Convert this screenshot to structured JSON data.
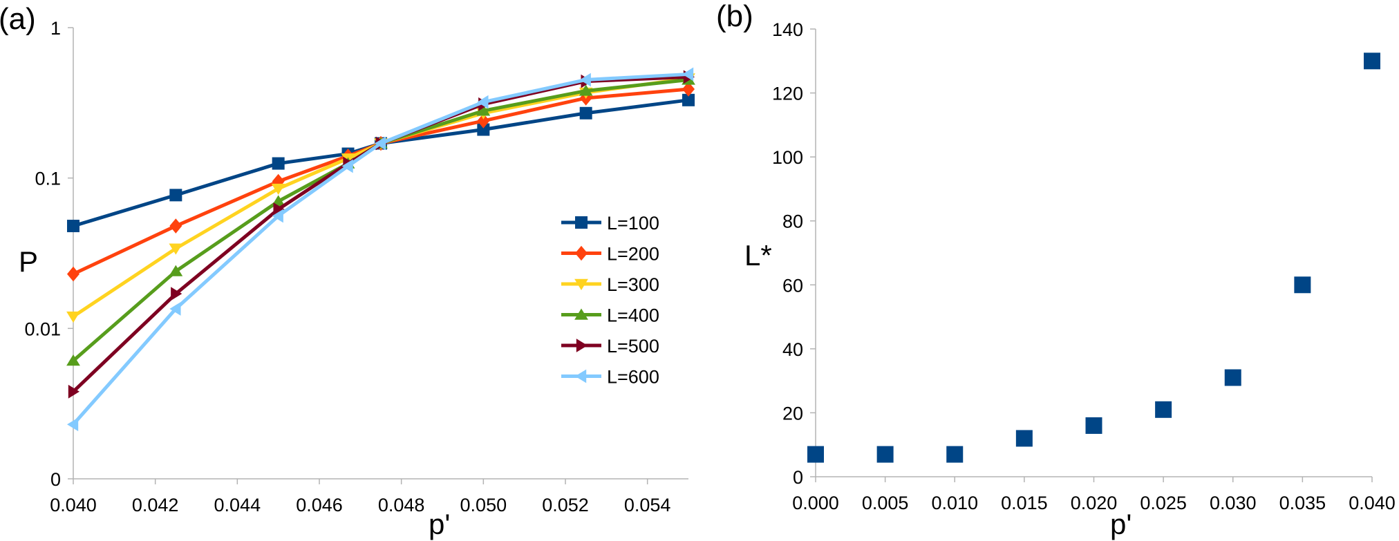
{
  "chart_data": [
    {
      "panel_label": "(a)",
      "type": "line",
      "xlabel": "p'",
      "ylabel": "P",
      "y_scale": "log",
      "xlim": [
        0.04,
        0.055
      ],
      "ylim": [
        0.001,
        1
      ],
      "x_ticks": [
        0.04,
        0.042,
        0.044,
        0.046,
        0.048,
        0.05,
        0.052,
        0.054
      ],
      "x_tick_labels": [
        "0.040",
        "0.042",
        "0.044",
        "0.046",
        "0.048",
        "0.050",
        "0.052",
        "0.054"
      ],
      "y_ticks": [
        0.001,
        0.01,
        0.1,
        1
      ],
      "y_tick_labels": [
        "0",
        "0.01",
        "0.1",
        "1"
      ],
      "grid": false,
      "legend_position": "right",
      "x": [
        0.04,
        0.0425,
        0.045,
        0.0467,
        0.0475,
        0.05,
        0.0525,
        0.055
      ],
      "series": [
        {
          "name": "L=100",
          "color": "#004586",
          "marker": "square",
          "values": [
            0.048,
            0.077,
            0.125,
            0.145,
            0.17,
            0.21,
            0.27,
            0.33
          ]
        },
        {
          "name": "L=200",
          "color": "#ff420e",
          "marker": "diamond",
          "values": [
            0.023,
            0.048,
            0.095,
            0.14,
            0.17,
            0.24,
            0.34,
            0.39
          ]
        },
        {
          "name": "L=300",
          "color": "#ffd320",
          "marker": "triangle-down",
          "values": [
            0.012,
            0.034,
            0.085,
            0.135,
            0.17,
            0.27,
            0.37,
            0.46
          ]
        },
        {
          "name": "L=400",
          "color": "#579d1c",
          "marker": "triangle-up",
          "values": [
            0.0061,
            0.024,
            0.07,
            0.125,
            0.17,
            0.28,
            0.38,
            0.45
          ]
        },
        {
          "name": "L=500",
          "color": "#7e0021",
          "marker": "triangle-right",
          "values": [
            0.0038,
            0.017,
            0.062,
            0.125,
            0.17,
            0.31,
            0.44,
            0.47
          ]
        },
        {
          "name": "L=600",
          "color": "#83caff",
          "marker": "triangle-left",
          "values": [
            0.0023,
            0.0135,
            0.056,
            0.12,
            0.17,
            0.32,
            0.45,
            0.49
          ]
        }
      ]
    },
    {
      "panel_label": "(b)",
      "type": "scatter",
      "xlabel": "p'",
      "ylabel": "L*",
      "xlim": [
        0.0,
        0.04
      ],
      "ylim": [
        0,
        140
      ],
      "x_ticks": [
        0.0,
        0.005,
        0.01,
        0.015,
        0.02,
        0.025,
        0.03,
        0.035,
        0.04
      ],
      "x_tick_labels": [
        "0.000",
        "0.005",
        "0.010",
        "0.015",
        "0.020",
        "0.025",
        "0.030",
        "0.035",
        "0.040"
      ],
      "y_ticks": [
        0,
        20,
        40,
        60,
        80,
        100,
        120,
        140
      ],
      "y_tick_labels": [
        "0",
        "20",
        "40",
        "60",
        "80",
        "100",
        "120",
        "140"
      ],
      "grid": false,
      "color": "#004586",
      "marker": "square",
      "x": [
        0.0,
        0.005,
        0.01,
        0.015,
        0.02,
        0.025,
        0.03,
        0.035,
        0.04
      ],
      "y": [
        7,
        7,
        7,
        12,
        16,
        21,
        31,
        60,
        130
      ]
    }
  ]
}
